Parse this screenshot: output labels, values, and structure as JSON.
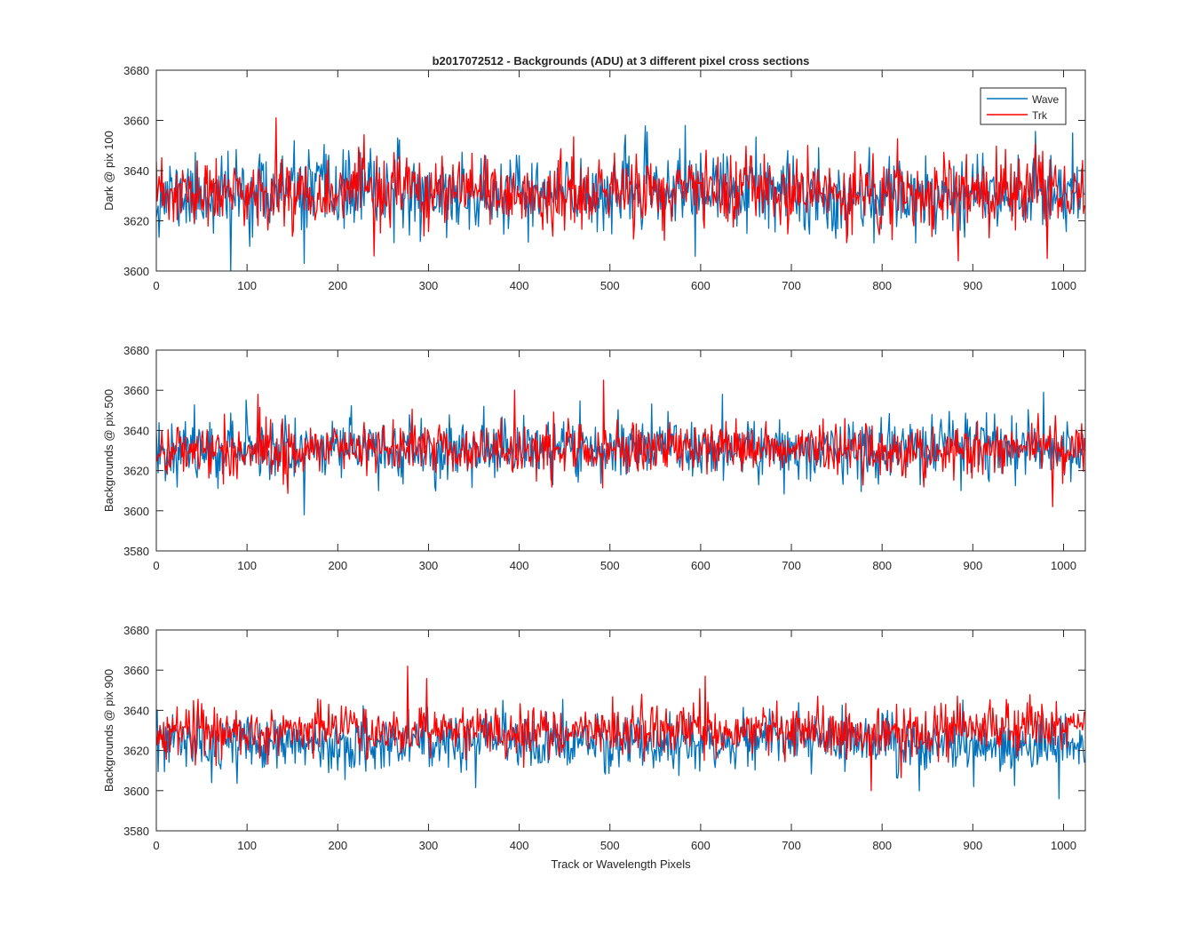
{
  "figure": {
    "title": "b2017072512 - Backgrounds (ADU) at 3 different pixel cross sections",
    "xlabel": "Track or Wavelength Pixels"
  },
  "legend": {
    "placement": "top-right",
    "entries": [
      {
        "label": "Wave",
        "color": "#0072BD"
      },
      {
        "label": "Trk",
        "color": "#FF0000"
      }
    ]
  },
  "chart_data": [
    {
      "type": "line",
      "ylabel": "Dark @ pix 100",
      "xlim": [
        0,
        1024
      ],
      "ylim": [
        3600,
        3680
      ],
      "xticks": [
        0,
        100,
        200,
        300,
        400,
        500,
        600,
        700,
        800,
        900,
        1000
      ],
      "yticks": [
        3600,
        3620,
        3640,
        3660,
        3680
      ],
      "n_points": 1024,
      "series": [
        {
          "name": "Wave",
          "color": "#0072BD",
          "mean": 3631,
          "std": 7.5,
          "seed": 11,
          "spikes": [
            [
              82,
              3600
            ],
            [
              163,
              3603
            ],
            [
              583,
              3658
            ],
            [
              1010,
              3655
            ]
          ]
        },
        {
          "name": "Trk",
          "color": "#FF0000",
          "mean": 3631,
          "std": 6.8,
          "seed": 23,
          "spikes": [
            [
              132,
              3661
            ],
            [
              240,
              3606
            ],
            [
              884,
              3604
            ],
            [
              982,
              3605
            ]
          ]
        }
      ]
    },
    {
      "type": "line",
      "ylabel": "Backgrounds @ pix 500",
      "xlim": [
        0,
        1024
      ],
      "ylim": [
        3580,
        3680
      ],
      "xticks": [
        0,
        100,
        200,
        300,
        400,
        500,
        600,
        700,
        800,
        900,
        1000
      ],
      "yticks": [
        3580,
        3600,
        3620,
        3640,
        3660,
        3680
      ],
      "n_points": 1024,
      "series": [
        {
          "name": "Wave",
          "color": "#0072BD",
          "mean": 3631,
          "std": 7.5,
          "seed": 37,
          "spikes": [
            [
              163,
              3598
            ],
            [
              624,
              3658
            ],
            [
              978,
              3659
            ]
          ]
        },
        {
          "name": "Trk",
          "color": "#FF0000",
          "mean": 3631,
          "std": 6.5,
          "seed": 41,
          "spikes": [
            [
              395,
              3660
            ],
            [
              493,
              3665
            ],
            [
              112,
              3658
            ],
            [
              988,
              3602
            ]
          ]
        }
      ]
    },
    {
      "type": "line",
      "ylabel": "Backgrounds @ pix 900",
      "xlim": [
        0,
        1024
      ],
      "ylim": [
        3580,
        3680
      ],
      "xticks": [
        0,
        100,
        200,
        300,
        400,
        500,
        600,
        700,
        800,
        900,
        1000
      ],
      "yticks": [
        3580,
        3600,
        3620,
        3640,
        3660,
        3680
      ],
      "n_points": 1024,
      "series": [
        {
          "name": "Wave",
          "color": "#0072BD",
          "mean": 3624,
          "std": 6.8,
          "seed": 53,
          "spikes": [
            [
              995,
              3596
            ],
            [
              61,
              3604
            ],
            [
              901,
              3602
            ]
          ]
        },
        {
          "name": "Trk",
          "color": "#FF0000",
          "mean": 3630,
          "std": 6.2,
          "seed": 67,
          "spikes": [
            [
              277,
              3662
            ],
            [
              605,
              3657
            ],
            [
              788,
              3600
            ]
          ]
        }
      ]
    }
  ]
}
